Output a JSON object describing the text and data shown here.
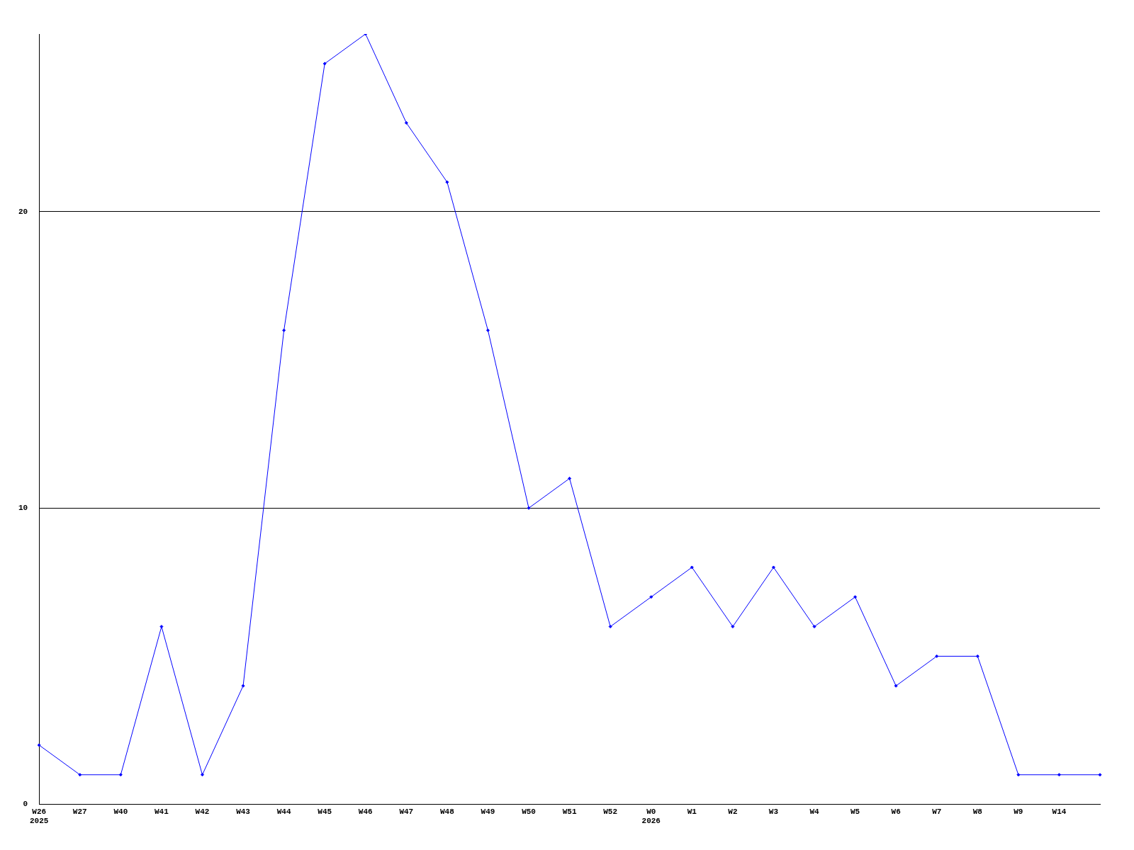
{
  "chart_data": {
    "type": "line",
    "categories": [
      "W26\n2025",
      "W27",
      "W40",
      "W41",
      "W42",
      "W43",
      "W44",
      "W45",
      "W46",
      "W47",
      "W48",
      "W49",
      "W50",
      "W51",
      "W52",
      "W0\n2026",
      "W1",
      "W2",
      "W3",
      "W4",
      "W5",
      "W6",
      "W7",
      "W8",
      "W9",
      "W14",
      null
    ],
    "series": [
      {
        "color": "#0000ff",
        "values": [
          2,
          1,
          1,
          6,
          1,
          4,
          16,
          25,
          26,
          23,
          21,
          16,
          10,
          11,
          6,
          7,
          8,
          6,
          8,
          6,
          7,
          4,
          5,
          5,
          1,
          1,
          1
        ]
      }
    ],
    "ylim": [
      0,
      26
    ],
    "yticks": [
      0,
      10,
      20
    ],
    "grid": "y",
    "legend": false,
    "marker": "diamond",
    "line_style": "solid"
  }
}
